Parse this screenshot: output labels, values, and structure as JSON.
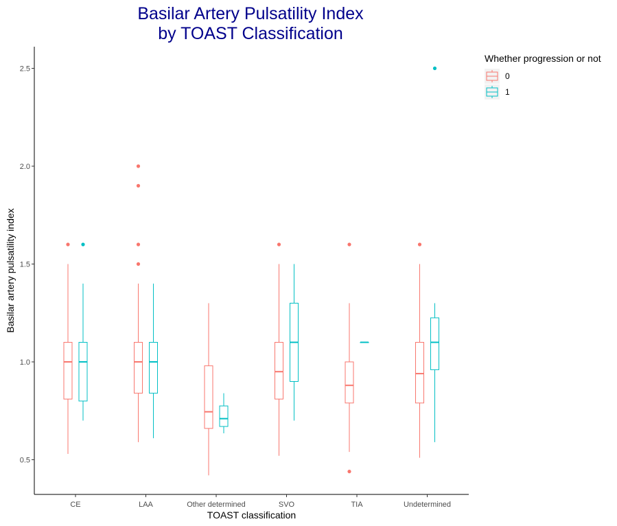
{
  "title": {
    "line1": "Basilar Artery Pulsatility Index",
    "line2": "by TOAST Classification"
  },
  "legend": {
    "title": "Whether progression or not",
    "items": [
      {
        "label": "0",
        "color": "#F8766D"
      },
      {
        "label": "1",
        "color": "#00BFC4"
      }
    ]
  },
  "chart_data": {
    "type": "boxplot",
    "title": "Basilar Artery Pulsatility Index by TOAST Classification",
    "xlabel": "TOAST classification",
    "ylabel": "Basilar artery pulsatility index",
    "categories": [
      "CE",
      "LAA",
      "Other determined",
      "SVO",
      "TIA",
      "Undetermined"
    ],
    "ylim": [
      0.33,
      2.6
    ],
    "yticks": [
      "0.5",
      "1.0",
      "1.5",
      "2.0",
      "2.5"
    ],
    "yticks_values": [
      0.5,
      1.0,
      1.5,
      2.0,
      2.5
    ],
    "grid": false,
    "legend_position": "top-right",
    "series": [
      {
        "name": "0",
        "color": "#F8766D",
        "boxes": [
          {
            "category": "CE",
            "whisker_low": 0.53,
            "q1": 0.81,
            "median": 1.0,
            "q3": 1.1,
            "whisker_high": 1.5,
            "outliers": [
              1.6
            ]
          },
          {
            "category": "LAA",
            "whisker_low": 0.59,
            "q1": 0.84,
            "median": 1.0,
            "q3": 1.1,
            "whisker_high": 1.4,
            "outliers": [
              1.5,
              1.6,
              1.9,
              2.0
            ]
          },
          {
            "category": "Other determined",
            "whisker_low": 0.42,
            "q1": 0.66,
            "median": 0.745,
            "q3": 0.98,
            "whisker_high": 1.3,
            "outliers": []
          },
          {
            "category": "SVO",
            "whisker_low": 0.52,
            "q1": 0.81,
            "median": 0.95,
            "q3": 1.1,
            "whisker_high": 1.5,
            "outliers": [
              1.6
            ]
          },
          {
            "category": "TIA",
            "whisker_low": 0.54,
            "q1": 0.79,
            "median": 0.88,
            "q3": 1.0,
            "whisker_high": 1.3,
            "outliers": [
              0.44,
              1.6
            ]
          },
          {
            "category": "Undetermined",
            "whisker_low": 0.51,
            "q1": 0.79,
            "median": 0.94,
            "q3": 1.1,
            "whisker_high": 1.5,
            "outliers": [
              1.6
            ]
          }
        ]
      },
      {
        "name": "1",
        "color": "#00BFC4",
        "boxes": [
          {
            "category": "CE",
            "whisker_low": 0.7,
            "q1": 0.8,
            "median": 1.0,
            "q3": 1.1,
            "whisker_high": 1.4,
            "outliers": [
              1.6
            ]
          },
          {
            "category": "LAA",
            "whisker_low": 0.61,
            "q1": 0.84,
            "median": 1.0,
            "q3": 1.1,
            "whisker_high": 1.4,
            "outliers": []
          },
          {
            "category": "Other determined",
            "whisker_low": 0.635,
            "q1": 0.67,
            "median": 0.71,
            "q3": 0.775,
            "whisker_high": 0.84,
            "outliers": []
          },
          {
            "category": "SVO",
            "whisker_low": 0.7,
            "q1": 0.9,
            "median": 1.1,
            "q3": 1.3,
            "whisker_high": 1.5,
            "outliers": []
          },
          {
            "category": "TIA",
            "whisker_low": 1.1,
            "q1": 1.1,
            "median": 1.1,
            "q3": 1.1,
            "whisker_high": 1.1,
            "outliers": []
          },
          {
            "category": "Undetermined",
            "whisker_low": 0.59,
            "q1": 0.96,
            "median": 1.1,
            "q3": 1.225,
            "whisker_high": 1.3,
            "outliers": [
              2.5
            ]
          }
        ]
      }
    ]
  }
}
